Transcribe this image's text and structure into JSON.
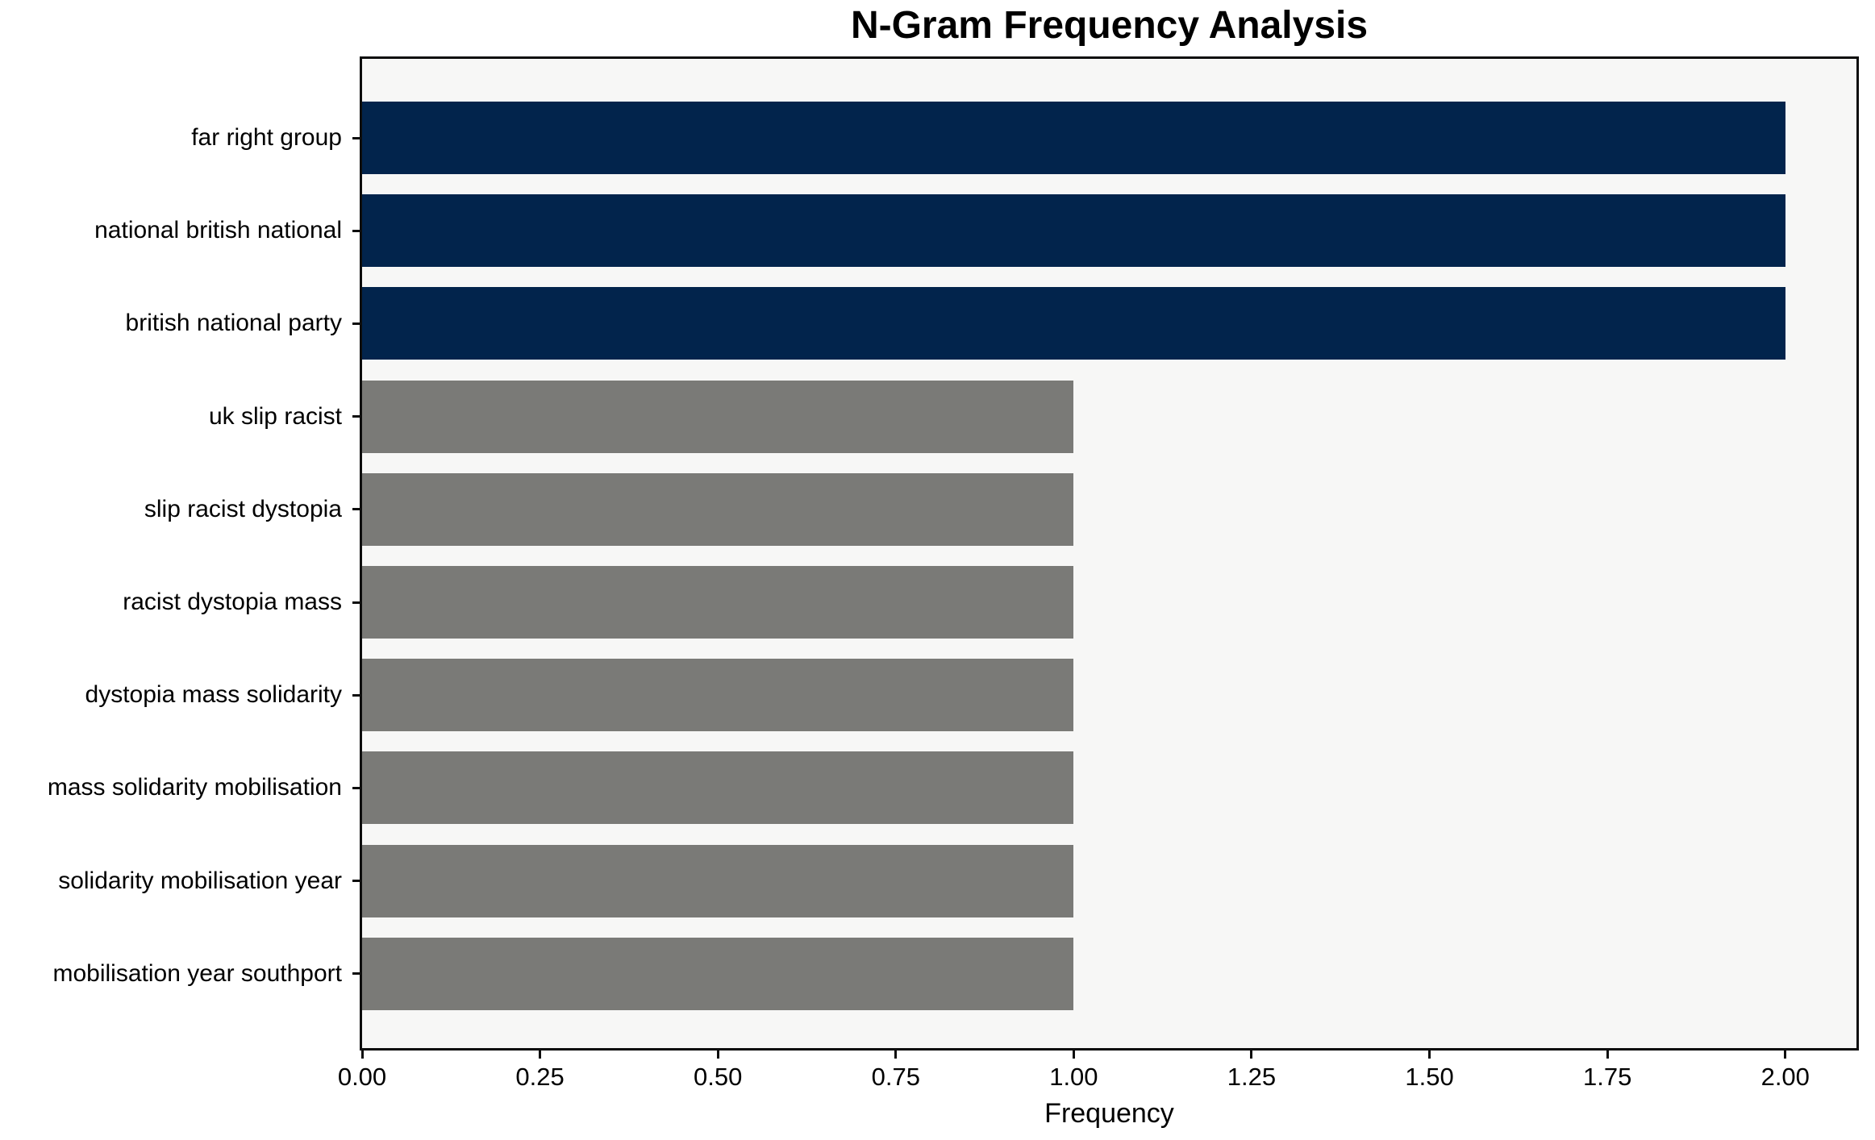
{
  "page": {
    "background": "#FFFFFF",
    "text_color": "#000000",
    "spine_color": "#0D0D0D"
  },
  "chart_data": {
    "type": "bar",
    "orientation": "horizontal",
    "title": "N-Gram Frequency Analysis",
    "xlabel": "Frequency",
    "ylabel": "",
    "categories": [
      "far right group",
      "national british national",
      "british national party",
      "uk slip racist",
      "slip racist dystopia",
      "racist dystopia mass",
      "dystopia mass solidarity",
      "mass solidarity mobilisation",
      "solidarity mobilisation year",
      "mobilisation year southport"
    ],
    "values": [
      2,
      2,
      2,
      1,
      1,
      1,
      1,
      1,
      1,
      1
    ],
    "bar_colors": [
      "#02244C",
      "#02244C",
      "#02244C",
      "#7A7A77",
      "#7A7A77",
      "#7A7A77",
      "#7A7A77",
      "#7A7A77",
      "#7A7A77",
      "#7A7A77"
    ],
    "highlight_color": "#02244C",
    "base_color": "#7A7A77",
    "plot_background": "#F7F7F6",
    "xlim": [
      0,
      2.1
    ],
    "xtick_values": [
      0,
      0.25,
      0.5,
      0.75,
      1.0,
      1.25,
      1.5,
      1.75,
      2.0
    ],
    "xtick_labels": [
      "0.00",
      "0.25",
      "0.50",
      "0.75",
      "1.00",
      "1.25",
      "1.50",
      "1.75",
      "2.00"
    ],
    "grid": false,
    "legend": "none"
  }
}
